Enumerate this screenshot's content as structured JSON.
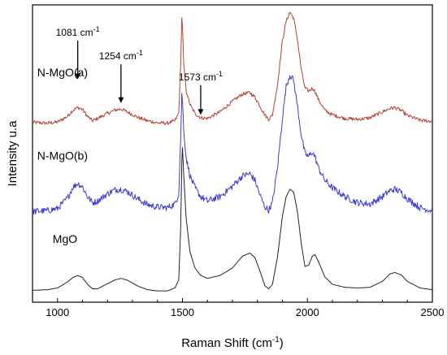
{
  "chart_data": {
    "type": "line",
    "xlabel": "Raman Shift (cm",
    "xlabel_sup": "-1",
    "xlabel_end": ")",
    "ylabel": "Intensity u.a",
    "xlim": [
      900,
      2500
    ],
    "xticks": [
      1000,
      1500,
      2000,
      2500
    ],
    "ylim": [
      0,
      100
    ],
    "grid": false,
    "series": [
      {
        "name": "N-MgO(a)",
        "color": "#b5412e",
        "noise": 0.6,
        "x": [
          900,
          960,
          1000,
          1040,
          1060,
          1081,
          1100,
          1120,
          1140,
          1160,
          1200,
          1230,
          1254,
          1280,
          1320,
          1360,
          1400,
          1440,
          1470,
          1485,
          1493,
          1497,
          1500,
          1505,
          1515,
          1530,
          1550,
          1573,
          1600,
          1650,
          1700,
          1740,
          1770,
          1790,
          1810,
          1830,
          1845,
          1860,
          1880,
          1900,
          1915,
          1930,
          1945,
          1960,
          1975,
          1990,
          2005,
          2020,
          2030,
          2045,
          2070,
          2100,
          2150,
          2200,
          2250,
          2300,
          2330,
          2350,
          2375,
          2400,
          2450,
          2500
        ],
        "y": [
          60.5,
          60.2,
          60.6,
          62.5,
          64.5,
          65.5,
          64.8,
          62.5,
          61.0,
          61.8,
          63.5,
          64.6,
          65.0,
          64.0,
          62.2,
          61.0,
          60.3,
          60.2,
          61.0,
          63.5,
          80,
          96,
          93,
          80,
          71,
          66.5,
          63.5,
          62.0,
          61.8,
          64.0,
          67.5,
          70.0,
          70.5,
          69.0,
          66.0,
          63.0,
          61.5,
          63.0,
          73,
          88,
          94.5,
          97.5,
          95.5,
          88.5,
          78.5,
          72.0,
          71.0,
          72.0,
          71.0,
          68.0,
          64.5,
          63.0,
          61.8,
          61.5,
          62.0,
          64.0,
          65.2,
          65.5,
          64.5,
          62.8,
          61.2,
          60.8
        ]
      },
      {
        "name": "N-MgO(b)",
        "color": "#3b3bd1",
        "noise": 1.1,
        "x": [
          900,
          960,
          1000,
          1040,
          1060,
          1081,
          1100,
          1120,
          1140,
          1160,
          1200,
          1230,
          1254,
          1280,
          1320,
          1360,
          1400,
          1440,
          1470,
          1485,
          1493,
          1497,
          1500,
          1505,
          1515,
          1530,
          1550,
          1573,
          1600,
          1650,
          1700,
          1740,
          1770,
          1790,
          1810,
          1830,
          1845,
          1860,
          1880,
          1900,
          1915,
          1930,
          1945,
          1960,
          1975,
          1990,
          2005,
          2020,
          2030,
          2045,
          2070,
          2100,
          2150,
          2200,
          2250,
          2300,
          2330,
          2350,
          2375,
          2400,
          2450,
          2500
        ],
        "y": [
          30.5,
          30.8,
          31.5,
          35.0,
          38.5,
          40.0,
          38.8,
          35.5,
          33.5,
          34.0,
          36.5,
          37.8,
          38.0,
          37.2,
          34.8,
          32.8,
          32.0,
          31.8,
          33.0,
          36.5,
          55,
          70,
          68,
          58,
          48.5,
          42.5,
          38.5,
          35.5,
          34.0,
          35.5,
          39.0,
          42.5,
          43.2,
          41.0,
          36.0,
          32.0,
          31.0,
          33.5,
          45,
          62,
          72.5,
          76.5,
          74.5,
          66.0,
          56.5,
          50.0,
          49.0,
          50.5,
          49.0,
          45.0,
          41.0,
          38.5,
          35.5,
          33.5,
          33.0,
          35.5,
          37.5,
          38.0,
          37.0,
          34.8,
          31.8,
          30.8
        ]
      },
      {
        "name": "MgO",
        "color": "#222222",
        "noise": 0,
        "x": [
          900,
          960,
          1000,
          1040,
          1060,
          1081,
          1100,
          1120,
          1140,
          1160,
          1200,
          1230,
          1254,
          1280,
          1320,
          1360,
          1400,
          1440,
          1470,
          1485,
          1493,
          1497,
          1500,
          1505,
          1515,
          1530,
          1550,
          1573,
          1600,
          1650,
          1700,
          1740,
          1770,
          1790,
          1810,
          1830,
          1845,
          1860,
          1880,
          1900,
          1915,
          1930,
          1945,
          1960,
          1975,
          1990,
          2005,
          2020,
          2030,
          2045,
          2070,
          2100,
          2150,
          2200,
          2250,
          2300,
          2330,
          2350,
          2375,
          2400,
          2450,
          2500
        ],
        "y": [
          4.0,
          4.2,
          4.8,
          6.8,
          8.2,
          9.0,
          8.3,
          6.0,
          4.5,
          4.5,
          6.2,
          7.5,
          8.0,
          7.4,
          5.5,
          4.2,
          3.8,
          3.8,
          4.8,
          7.5,
          25,
          46,
          52,
          43,
          28,
          17,
          11.5,
          9.0,
          8.0,
          9.0,
          11.5,
          15.5,
          16.5,
          15.0,
          10.5,
          5.5,
          4.5,
          6.0,
          15,
          29,
          35.5,
          38.0,
          37.0,
          30.5,
          20.0,
          12.0,
          12.5,
          15.5,
          16.0,
          13.5,
          8.5,
          6.0,
          5.0,
          4.8,
          5.0,
          7.0,
          9.5,
          10.0,
          9.2,
          7.0,
          4.8,
          4.2
        ]
      }
    ],
    "series_labels": [
      {
        "text": "N-MgO(a)",
        "at_x": 1020,
        "at_y": 76
      },
      {
        "text": "N-MgO(b)",
        "at_x": 1020,
        "at_y": 48
      },
      {
        "text": "MgO",
        "at_x": 1030,
        "at_y": 20
      }
    ],
    "annotations": [
      {
        "label_text": "1081 cm",
        "label_sup": "-1",
        "x": 1081,
        "arrow_top": 88,
        "arrow_tip": 75
      },
      {
        "label_text": "1254 cm",
        "label_sup": "-1",
        "x": 1254,
        "arrow_top": 80,
        "arrow_tip": 67
      },
      {
        "label_text": "1573 cm",
        "label_sup": "-1",
        "x": 1573,
        "arrow_top": 73,
        "arrow_tip": 63
      }
    ]
  }
}
